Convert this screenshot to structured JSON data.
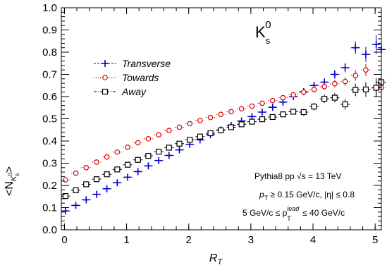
{
  "chart_data": {
    "type": "scatter",
    "title": "",
    "particle_label": "K",
    "particle_sub": "s",
    "particle_sup": "0",
    "xlabel": "R",
    "xlabel_sub": "T",
    "ylabel": "<N",
    "ylabel_sub": "K",
    "ylabel_sub_sub": "s",
    "ylabel_sub_sup": "0",
    "ylabel_end": ">",
    "xlim": [
      -0.05,
      5.1
    ],
    "ylim": [
      0.0,
      1.0
    ],
    "x_ticks": [
      0,
      1,
      2,
      3,
      4,
      5
    ],
    "y_ticks": [
      0.0,
      0.1,
      0.2,
      0.3,
      0.4,
      0.5,
      0.6,
      0.7,
      0.8,
      0.9,
      1.0
    ],
    "y_tick_labels": [
      "0.0",
      "0.1",
      "0.2",
      "0.3",
      "0.4",
      "0.5",
      "0.6",
      "0.7",
      "0.8",
      "0.9",
      "1.0"
    ],
    "grid": false,
    "legend_position": "top-left",
    "annotations": {
      "line1_a": "Pythia8 pp ",
      "line1_b": "s",
      "line1_c": " = 13 TeV",
      "line2_p": "p",
      "line2_t": "T",
      "line2_rest": " ≥ 0.15 GeV/c, |η| ≤ 0.8",
      "line3_a": "5 GeV/c ≤  p",
      "line3_sup": "lead",
      "line3_sub": "T",
      "line3_b": " ≤ 40 GeV/c"
    },
    "series": [
      {
        "name": "Transverse",
        "color": "#0000cc",
        "marker": "cross",
        "line": "dash",
        "points": [
          [
            0.017,
            0.085,
            0.008
          ],
          [
            0.183,
            0.11,
            0.008
          ],
          [
            0.35,
            0.135,
            0.008
          ],
          [
            0.517,
            0.16,
            0.008
          ],
          [
            0.683,
            0.185,
            0.008
          ],
          [
            0.85,
            0.212,
            0.008
          ],
          [
            1.017,
            0.237,
            0.008
          ],
          [
            1.183,
            0.262,
            0.008
          ],
          [
            1.35,
            0.288,
            0.008
          ],
          [
            1.517,
            0.312,
            0.008
          ],
          [
            1.683,
            0.335,
            0.008
          ],
          [
            1.85,
            0.36,
            0.008
          ],
          [
            2.017,
            0.385,
            0.008
          ],
          [
            2.183,
            0.405,
            0.008
          ],
          [
            2.35,
            0.428,
            0.008
          ],
          [
            2.517,
            0.45,
            0.008
          ],
          [
            2.683,
            0.47,
            0.008
          ],
          [
            2.85,
            0.49,
            0.008
          ],
          [
            3.017,
            0.51,
            0.008
          ],
          [
            3.183,
            0.53,
            0.01
          ],
          [
            3.35,
            0.552,
            0.01
          ],
          [
            3.517,
            0.575,
            0.01
          ],
          [
            3.683,
            0.6,
            0.01
          ],
          [
            3.85,
            0.622,
            0.012
          ],
          [
            4.017,
            0.65,
            0.012
          ],
          [
            4.183,
            0.665,
            0.014
          ],
          [
            4.35,
            0.7,
            0.016
          ],
          [
            4.517,
            0.73,
            0.018
          ],
          [
            4.683,
            0.82,
            0.025
          ],
          [
            4.85,
            0.79,
            0.03
          ],
          [
            5.017,
            0.835,
            0.04
          ],
          [
            5.1,
            0.812,
            0.05
          ]
        ]
      },
      {
        "name": "Towards",
        "color": "#dd0000",
        "marker": "circle",
        "line": "dot",
        "points": [
          [
            0.017,
            0.225,
            0.006
          ],
          [
            0.183,
            0.255,
            0.006
          ],
          [
            0.35,
            0.28,
            0.006
          ],
          [
            0.517,
            0.305,
            0.006
          ],
          [
            0.683,
            0.328,
            0.006
          ],
          [
            0.85,
            0.35,
            0.006
          ],
          [
            1.017,
            0.372,
            0.006
          ],
          [
            1.183,
            0.392,
            0.006
          ],
          [
            1.35,
            0.41,
            0.006
          ],
          [
            1.517,
            0.428,
            0.006
          ],
          [
            1.683,
            0.447,
            0.006
          ],
          [
            1.85,
            0.462,
            0.006
          ],
          [
            2.017,
            0.478,
            0.006
          ],
          [
            2.183,
            0.492,
            0.006
          ],
          [
            2.35,
            0.506,
            0.006
          ],
          [
            2.517,
            0.52,
            0.006
          ],
          [
            2.683,
            0.532,
            0.006
          ],
          [
            2.85,
            0.545,
            0.006
          ],
          [
            3.017,
            0.557,
            0.007
          ],
          [
            3.183,
            0.57,
            0.007
          ],
          [
            3.35,
            0.582,
            0.008
          ],
          [
            3.517,
            0.595,
            0.008
          ],
          [
            3.683,
            0.608,
            0.009
          ],
          [
            3.85,
            0.62,
            0.01
          ],
          [
            4.017,
            0.632,
            0.011
          ],
          [
            4.183,
            0.645,
            0.012
          ],
          [
            4.35,
            0.658,
            0.014
          ],
          [
            4.517,
            0.668,
            0.016
          ],
          [
            4.683,
            0.695,
            0.02
          ],
          [
            4.85,
            0.72,
            0.024
          ],
          [
            5.017,
            0.638,
            0.03
          ],
          [
            5.1,
            0.64,
            0.04
          ]
        ]
      },
      {
        "name": "Away",
        "color": "#000000",
        "marker": "square-open",
        "line": "dashdot",
        "points": [
          [
            0.017,
            0.152,
            0.006
          ],
          [
            0.183,
            0.178,
            0.006
          ],
          [
            0.35,
            0.205,
            0.006
          ],
          [
            0.517,
            0.228,
            0.006
          ],
          [
            0.683,
            0.25,
            0.006
          ],
          [
            0.85,
            0.272,
            0.006
          ],
          [
            1.017,
            0.293,
            0.006
          ],
          [
            1.183,
            0.315,
            0.006
          ],
          [
            1.35,
            0.333,
            0.006
          ],
          [
            1.517,
            0.352,
            0.006
          ],
          [
            1.683,
            0.37,
            0.006
          ],
          [
            1.85,
            0.388,
            0.006
          ],
          [
            2.017,
            0.405,
            0.006
          ],
          [
            2.183,
            0.42,
            0.006
          ],
          [
            2.35,
            0.435,
            0.006
          ],
          [
            2.517,
            0.448,
            0.006
          ],
          [
            2.683,
            0.462,
            0.006
          ],
          [
            2.85,
            0.475,
            0.007
          ],
          [
            3.017,
            0.487,
            0.007
          ],
          [
            3.183,
            0.498,
            0.008
          ],
          [
            3.35,
            0.508,
            0.008
          ],
          [
            3.517,
            0.52,
            0.009
          ],
          [
            3.683,
            0.532,
            0.01
          ],
          [
            3.85,
            0.53,
            0.012
          ],
          [
            4.017,
            0.555,
            0.014
          ],
          [
            4.183,
            0.59,
            0.016
          ],
          [
            4.35,
            0.595,
            0.018
          ],
          [
            4.517,
            0.565,
            0.02
          ],
          [
            4.683,
            0.63,
            0.025
          ],
          [
            4.85,
            0.632,
            0.03
          ],
          [
            5.017,
            0.64,
            0.04
          ],
          [
            5.1,
            0.665,
            0.05
          ]
        ]
      }
    ]
  }
}
